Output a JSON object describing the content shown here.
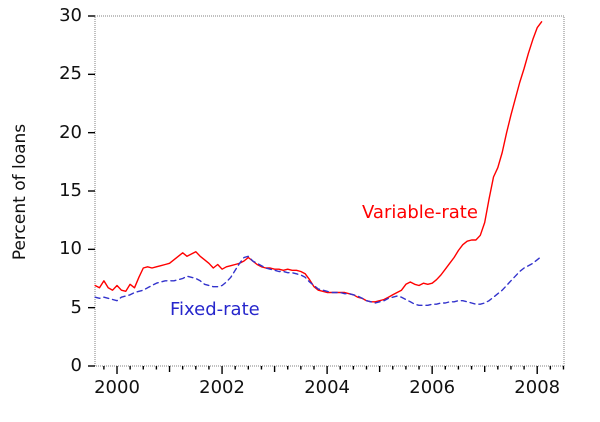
{
  "figure": {
    "ylabel": "Percent of loans",
    "accent_colors": {
      "variable_rate": "#ff0000",
      "fixed_rate": "#3333cc",
      "frame": "#808080",
      "ticks": "#000000"
    }
  },
  "chart_data": {
    "type": "line",
    "title": "",
    "xlabel": "",
    "ylabel": "Percent of loans",
    "grid": false,
    "legend_position": "in-plot text annotations",
    "xlim": [
      1999.581,
      2008.51
    ],
    "ylim": [
      0,
      30
    ],
    "y_ticks": [
      0,
      5,
      10,
      15,
      20,
      25,
      30
    ],
    "y_tick_labels": [
      "0",
      "5",
      "10",
      "15",
      "20",
      "25",
      "30"
    ],
    "x_year_ticks": [
      2000,
      2001,
      2002,
      2003,
      2004,
      2005,
      2006,
      2007,
      2008
    ],
    "x_labeled_ticks": [
      2000,
      2002,
      2004,
      2006,
      2008
    ],
    "x_tick_labels": [
      "2000",
      "2002",
      "2004",
      "2006",
      "2008"
    ],
    "x_minor_tick_step": 0.25,
    "x": [
      1999.583,
      1999.667,
      1999.75,
      1999.833,
      1999.917,
      2000.0,
      2000.083,
      2000.167,
      2000.25,
      2000.333,
      2000.417,
      2000.5,
      2000.583,
      2000.667,
      2000.75,
      2000.833,
      2000.917,
      2001.0,
      2001.083,
      2001.167,
      2001.25,
      2001.333,
      2001.417,
      2001.5,
      2001.583,
      2001.667,
      2001.75,
      2001.833,
      2001.917,
      2002.0,
      2002.083,
      2002.167,
      2002.25,
      2002.333,
      2002.417,
      2002.5,
      2002.583,
      2002.667,
      2002.75,
      2002.833,
      2002.917,
      2003.0,
      2003.083,
      2003.167,
      2003.25,
      2003.333,
      2003.417,
      2003.5,
      2003.583,
      2003.667,
      2003.75,
      2003.833,
      2003.917,
      2004.0,
      2004.083,
      2004.167,
      2004.25,
      2004.333,
      2004.417,
      2004.5,
      2004.583,
      2004.667,
      2004.75,
      2004.833,
      2004.917,
      2005.0,
      2005.083,
      2005.167,
      2005.25,
      2005.333,
      2005.417,
      2005.5,
      2005.583,
      2005.667,
      2005.75,
      2005.833,
      2005.917,
      2006.0,
      2006.083,
      2006.167,
      2006.25,
      2006.333,
      2006.417,
      2006.5,
      2006.583,
      2006.667,
      2006.75,
      2006.833,
      2006.917,
      2007.0,
      2007.083,
      2007.167,
      2007.25,
      2007.333,
      2007.417,
      2007.5,
      2007.583,
      2007.667,
      2007.75,
      2007.833,
      2007.917,
      2008.0,
      2008.083
    ],
    "series": [
      {
        "name": "Variable-rate",
        "color": "#ff0000",
        "style": "solid",
        "values": [
          6.9,
          6.7,
          7.3,
          6.7,
          6.5,
          6.9,
          6.5,
          6.4,
          7.0,
          6.7,
          7.6,
          8.4,
          8.5,
          8.4,
          8.5,
          8.6,
          8.7,
          8.8,
          9.1,
          9.4,
          9.7,
          9.4,
          9.6,
          9.8,
          9.4,
          9.1,
          8.8,
          8.4,
          8.7,
          8.3,
          8.5,
          8.6,
          8.7,
          8.8,
          9.0,
          9.3,
          9.0,
          8.7,
          8.5,
          8.4,
          8.4,
          8.3,
          8.3,
          8.2,
          8.3,
          8.2,
          8.2,
          8.1,
          7.9,
          7.4,
          6.8,
          6.5,
          6.4,
          6.3,
          6.3,
          6.3,
          6.3,
          6.3,
          6.2,
          6.1,
          5.9,
          5.8,
          5.6,
          5.5,
          5.5,
          5.6,
          5.7,
          5.9,
          6.1,
          6.3,
          6.5,
          7.0,
          7.2,
          7.0,
          6.9,
          7.1,
          7.0,
          7.1,
          7.4,
          7.8,
          8.3,
          8.8,
          9.3,
          9.9,
          10.4,
          10.7,
          10.8,
          10.8,
          11.2,
          12.3,
          14.3,
          16.2,
          17.0,
          18.3,
          20.0,
          21.5,
          22.9,
          24.3,
          25.5,
          26.8,
          28.0,
          29.0,
          29.5
        ]
      },
      {
        "name": "Fixed-rate",
        "color": "#3333cc",
        "style": "dashed",
        "values": [
          5.9,
          5.8,
          5.9,
          5.8,
          5.7,
          5.6,
          5.9,
          6.0,
          6.1,
          6.3,
          6.4,
          6.5,
          6.7,
          6.9,
          7.1,
          7.2,
          7.3,
          7.3,
          7.3,
          7.4,
          7.5,
          7.7,
          7.6,
          7.5,
          7.3,
          7.0,
          6.9,
          6.8,
          6.8,
          6.9,
          7.2,
          7.6,
          8.2,
          8.8,
          9.3,
          9.4,
          9.0,
          8.8,
          8.6,
          8.4,
          8.3,
          8.2,
          8.1,
          8.1,
          8.0,
          8.0,
          7.9,
          7.8,
          7.6,
          7.2,
          6.9,
          6.6,
          6.5,
          6.4,
          6.3,
          6.3,
          6.3,
          6.2,
          6.2,
          6.1,
          6.0,
          5.8,
          5.6,
          5.5,
          5.4,
          5.5,
          5.6,
          5.8,
          5.9,
          6.0,
          5.9,
          5.7,
          5.5,
          5.3,
          5.2,
          5.2,
          5.2,
          5.3,
          5.3,
          5.4,
          5.4,
          5.5,
          5.5,
          5.6,
          5.6,
          5.5,
          5.4,
          5.3,
          5.3,
          5.4,
          5.6,
          5.9,
          6.2,
          6.5,
          6.9,
          7.3,
          7.7,
          8.1,
          8.4,
          8.6,
          8.8,
          9.1,
          9.4
        ]
      }
    ]
  }
}
